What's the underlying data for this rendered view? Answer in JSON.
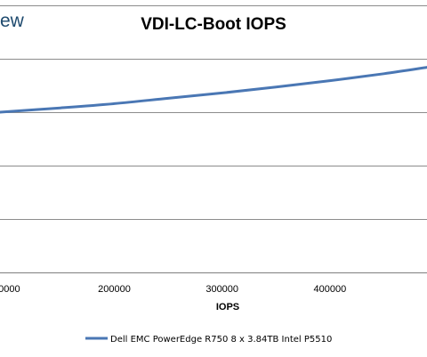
{
  "brand": {
    "partial_text": "ew"
  },
  "chart_data": {
    "type": "line",
    "title": "VDI-LC-Boot IOPS",
    "xlabel": "IOPS",
    "ylabel": "",
    "x_ticks": [
      "00000",
      "200000",
      "300000",
      "400000"
    ],
    "x_tick_values": [
      100000,
      200000,
      300000,
      400000
    ],
    "xlim": [
      94000,
      490000
    ],
    "ylim": [
      0,
      5
    ],
    "grid": "horizontal",
    "legend_position": "bottom",
    "series": [
      {
        "name": "Dell EMC PowerEdge R750 8 x 3.84TB Intel P5510",
        "color": "#4a77b4",
        "x": [
          94000,
          150000,
          200000,
          250000,
          300000,
          350000,
          400000,
          450000,
          490000
        ],
        "y": [
          3.0,
          3.08,
          3.16,
          3.26,
          3.36,
          3.47,
          3.59,
          3.72,
          3.84
        ]
      }
    ]
  }
}
